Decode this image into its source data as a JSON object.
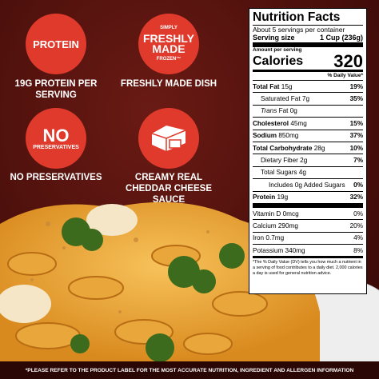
{
  "badges": [
    {
      "icon_text": [
        "PROTEIN"
      ],
      "caption": [
        "19G PROTEIN PER",
        "SERVING"
      ]
    },
    {
      "icon_text": [
        "SIMPLY",
        "FRESHLY",
        "MADE",
        "FROZEN™"
      ],
      "caption": [
        "FRESHLY MADE DISH"
      ]
    },
    {
      "icon_text": [
        "NO",
        "PRESERVATIVES"
      ],
      "caption": [
        "NO PRESERVATIVES"
      ]
    },
    {
      "caption": [
        "CREAMY REAL",
        "CHEDDAR CHEESE",
        "SAUCE"
      ]
    }
  ],
  "nutrition": {
    "title": "Nutrition Facts",
    "servings": "About 5 servings per container",
    "serving_size_label": "Serving size",
    "serving_size": "1 Cup (236g)",
    "amount_per_serving": "Amount per serving",
    "calories_label": "Calories",
    "calories": "320",
    "dv_header": "% Daily Value*",
    "rows": [
      [
        "Total Fat",
        "15g",
        "19%"
      ],
      [
        "Saturated Fat",
        "7g",
        "35%"
      ],
      [
        "Trans",
        "Fat 0g"
      ],
      [
        "Cholesterol",
        "45mg",
        "15%"
      ],
      [
        "Sodium",
        "850mg",
        "37%"
      ],
      [
        "Total Carbohydrate",
        "28g",
        "10%"
      ],
      [
        "Dietary Fiber",
        "2g",
        "7%"
      ],
      [
        "Total Sugars",
        "4g"
      ],
      [
        "Includes 0g Added Sugars",
        "0%"
      ],
      [
        "Protein",
        "19g",
        "32%"
      ]
    ],
    "vitamins": [
      [
        "Vitamin D",
        "0mcg",
        "0%"
      ],
      [
        "Calcium",
        "290mg",
        "20%"
      ],
      [
        "Iron",
        "0.7mg",
        "4%"
      ],
      [
        "Potassium",
        "340mg",
        "8%"
      ]
    ],
    "footnote": "*The % Daily Value (DV) tells you how much a nutrient in a serving of food contributes to a daily diet. 2,000 calories a day is used for general nutrition advice."
  },
  "footer": "*PLEASE REFER TO THE PRODUCT LABEL FOR THE MOST ACCURATE NUTRITION, INGREDIENT AND ALLERGEN INFORMATION"
}
